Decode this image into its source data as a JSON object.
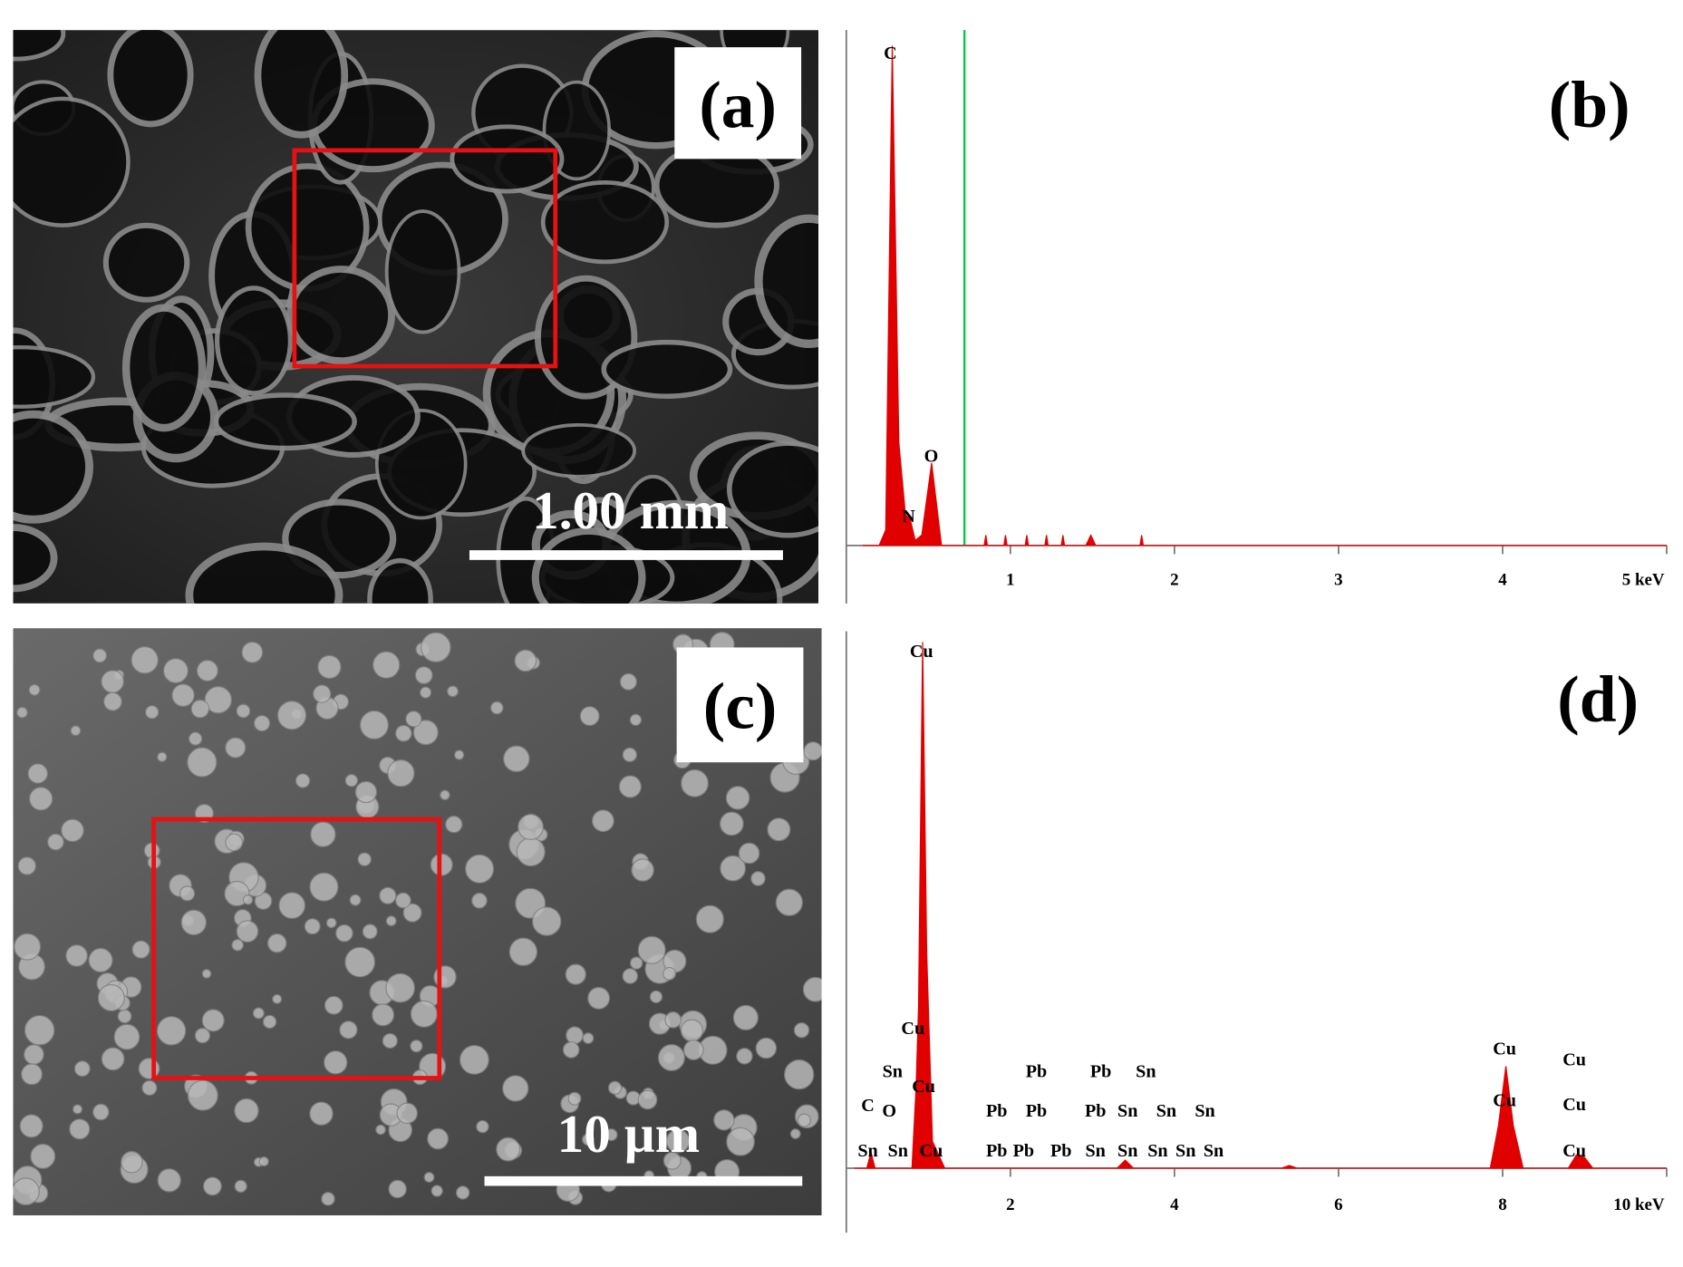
{
  "images": [
    {
      "label": "(a)",
      "scale_bar": "1.00 mm"
    },
    {
      "label": "(c)",
      "scale_bar": "10 µm"
    }
  ],
  "chart_data": [
    {
      "type": "area",
      "title": "(b)",
      "x": [
        0.1,
        0.2,
        0.24,
        0.28,
        0.32,
        0.36,
        0.39,
        0.42,
        0.46,
        0.52,
        0.58,
        0.62,
        0.84,
        0.85,
        0.86,
        0.96,
        0.97,
        0.98,
        1.09,
        1.1,
        1.11,
        1.21,
        1.22,
        1.23,
        1.31,
        1.32,
        1.33,
        1.46,
        1.49,
        1.52,
        1.79,
        1.8,
        1.81,
        5
      ],
      "series": [
        {
          "color": "#e00000",
          "values": [
            0,
            0,
            3,
            97,
            20,
            6,
            5,
            1,
            2,
            16,
            0,
            0,
            0,
            2,
            0,
            0,
            2,
            0,
            0,
            2,
            0,
            0,
            2,
            0,
            0,
            2,
            0,
            0,
            2,
            0,
            0,
            2,
            0,
            0
          ]
        }
      ],
      "xlim": [
        0,
        5
      ],
      "xticks": [
        1,
        2,
        3,
        4,
        {
          "value": 5,
          "label": "5 keV"
        }
      ],
      "ylim": [
        0,
        100
      ],
      "marker_line": {
        "x": 0.72,
        "color": "#00cc44"
      },
      "peak_labels": [
        "C",
        "N",
        "O"
      ]
    },
    {
      "type": "area",
      "title": "(d)",
      "x": [
        0.1,
        0.25,
        0.3,
        0.35,
        0.5,
        0.8,
        0.85,
        0.88,
        0.93,
        0.98,
        1.05,
        1.2,
        3.3,
        3.4,
        3.5,
        5.3,
        5.4,
        5.5,
        7.85,
        7.95,
        8.04,
        8.13,
        8.25,
        8.8,
        8.9,
        9.0,
        9.1,
        10
      ],
      "series": [
        {
          "color": "#e00000",
          "values": [
            0,
            0,
            3,
            0,
            0,
            0,
            15,
            30,
            98,
            40,
            5,
            0,
            0,
            1.5,
            0,
            0,
            0.5,
            0,
            0,
            8,
            19,
            8,
            0,
            0,
            2.5,
            2,
            0,
            0
          ]
        }
      ],
      "xlim": [
        0,
        10
      ],
      "xticks": [
        2,
        4,
        6,
        8,
        {
          "value": 10,
          "label": "10 keV"
        }
      ],
      "ylim": [
        0,
        100
      ],
      "peak_labels": [
        "Cu",
        "Cu",
        "Sn",
        "Cu",
        "C",
        "O",
        "Sn",
        "Sn",
        "Cu",
        "Pb",
        "Pb",
        "Pb",
        "Pb",
        "Pb",
        "Pb",
        "Pb",
        "Sn",
        "Pb",
        "Sn",
        "Sn",
        "Sn",
        "Sn",
        "Sn",
        "Sn",
        "Sn",
        "Sn",
        "Cu",
        "Cu",
        "Cu",
        "Cu",
        "Cu"
      ]
    }
  ]
}
